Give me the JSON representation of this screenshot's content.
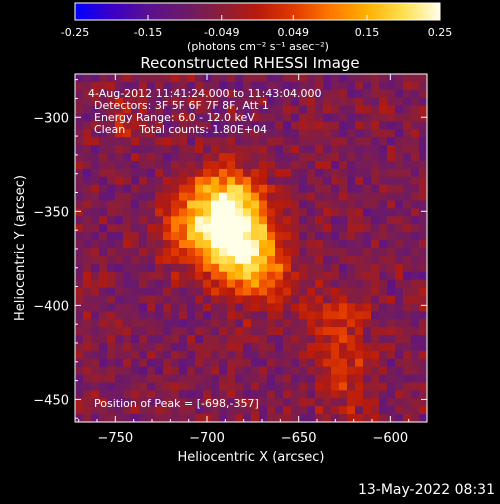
{
  "colorbar": {
    "ticks": [
      "-0.25",
      "-0.15",
      "-0.049",
      "0.049",
      "0.15",
      "0.25"
    ],
    "unit_label": "(photons cm⁻² s⁻¹ asec⁻²)",
    "range": [
      -0.25,
      0.25
    ],
    "stops": [
      "#0000ff",
      "#3a00c8",
      "#5a1090",
      "#6a1a6a",
      "#8a1e3a",
      "#b81a0c",
      "#e23a00",
      "#ff7800",
      "#ffb000",
      "#ffe050",
      "#ffffe8"
    ]
  },
  "annotations": {
    "time_range": "4-Aug-2012 11:41:24.000 to 11:43:04.000",
    "detectors": "Detectors: 3F 5F 6F 7F 8F, Att 1",
    "energy": "Energy Range: 6.0 - 12.0 keV",
    "method": "Clean    Total counts: 1.80E+04",
    "peak": "Position of Peak = [-698,-357]"
  },
  "footer": {
    "timestamp": "13-May-2022 08:31"
  },
  "chart_data": {
    "type": "heatmap",
    "title": "Reconstructed RHESSI Image",
    "xlabel": "Heliocentric X (arcsec)",
    "ylabel": "Heliocentric Y (arcsec)",
    "xlim": [
      -772,
      -580
    ],
    "ylim": [
      -462,
      -277
    ],
    "x_ticks": [
      -750,
      -700,
      -650,
      -600
    ],
    "y_ticks": [
      -300,
      -350,
      -400,
      -450
    ],
    "peak_position": [
      -698,
      -357
    ],
    "sources": [
      {
        "x": -698,
        "y": -357,
        "amplitude": 0.25,
        "sigma": 16
      },
      {
        "x": -680,
        "y": -368,
        "amplitude": 0.2,
        "sigma": 14
      },
      {
        "x": -685,
        "y": -342,
        "amplitude": 0.14,
        "sigma": 11
      },
      {
        "x": -672,
        "y": -385,
        "amplitude": 0.12,
        "sigma": 12
      },
      {
        "x": -632,
        "y": -408,
        "amplitude": 0.1,
        "sigma": 12
      },
      {
        "x": -625,
        "y": -430,
        "amplitude": 0.07,
        "sigma": 10
      },
      {
        "x": -745,
        "y": -300,
        "amplitude": 0.05,
        "sigma": 10
      },
      {
        "x": -625,
        "y": -450,
        "amplitude": 0.06,
        "sigma": 9
      }
    ]
  }
}
